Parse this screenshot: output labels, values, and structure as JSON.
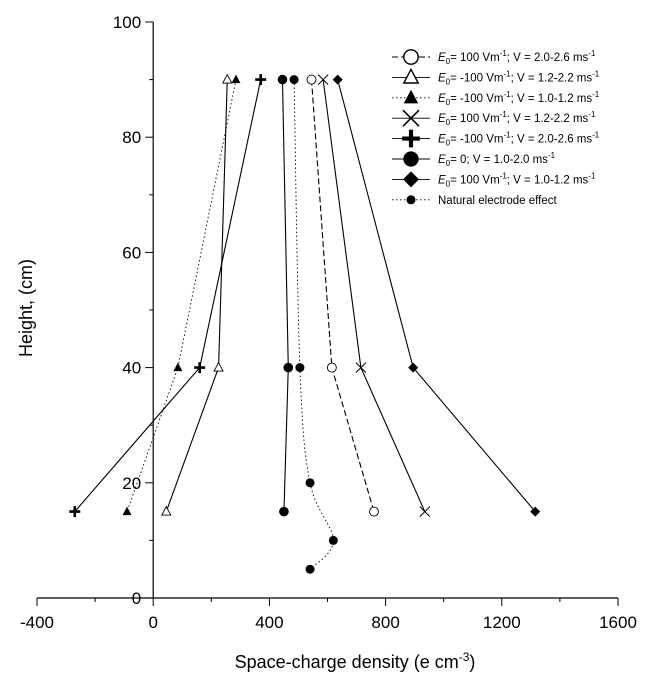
{
  "chart_data": {
    "type": "line",
    "title": "",
    "xlabel": "Space-charge density (e cm",
    "xlabel_sup": "-3",
    "xlabel_end": ")",
    "ylabel": "Height, (cm)",
    "xlim": [
      -400,
      1600
    ],
    "ylim": [
      0,
      100
    ],
    "x_ticks": [
      -400,
      0,
      400,
      800,
      1200,
      1600
    ],
    "y_ticks": [
      0,
      20,
      40,
      60,
      80,
      100
    ],
    "x_minor_step": 200,
    "y_minor_step": 10,
    "grid": false,
    "legend_position": "top-right",
    "series": [
      {
        "name": "E0= 100 Vm-1; V = 2.0-2.6 ms-1",
        "legend_parts": [
          {
            "t": "E",
            "style": "italic"
          },
          {
            "t": "0",
            "style": "sub"
          },
          {
            "t": "= 100 Vm",
            "style": "normal"
          },
          {
            "t": "-1",
            "style": "sup"
          },
          {
            "t": "; V = 2.0-2.6 ms",
            "style": "normal"
          },
          {
            "t": "-1",
            "style": "sup"
          }
        ],
        "marker": "open-circle",
        "line": "dashed",
        "x": [
          545,
          615,
          760
        ],
        "y": [
          90,
          40,
          15
        ]
      },
      {
        "name": "E0= -100 Vm-1; V = 1.2-2.2 ms-1",
        "legend_parts": [
          {
            "t": "E",
            "style": "italic"
          },
          {
            "t": "0",
            "style": "sub"
          },
          {
            "t": "= -100 Vm",
            "style": "normal"
          },
          {
            "t": "-1",
            "style": "sup"
          },
          {
            "t": "; V = 1.2-2.2 ms",
            "style": "normal"
          },
          {
            "t": "-1",
            "style": "sup"
          }
        ],
        "marker": "open-triangle",
        "line": "solid",
        "x": [
          255,
          225,
          45
        ],
        "y": [
          90,
          40,
          15
        ]
      },
      {
        "name": "E0= -100 Vm-1; V = 1.0-1.2 ms-1",
        "legend_parts": [
          {
            "t": "E",
            "style": "italic"
          },
          {
            "t": "0",
            "style": "sub"
          },
          {
            "t": "= -100 Vm",
            "style": "normal"
          },
          {
            "t": "-1",
            "style": "sup"
          },
          {
            "t": "; V = 1.0-1.2 ms",
            "style": "normal"
          },
          {
            "t": "-1",
            "style": "sup"
          }
        ],
        "marker": "filled-triangle",
        "line": "dotted",
        "x": [
          285,
          85,
          -90
        ],
        "y": [
          90,
          40,
          15
        ]
      },
      {
        "name": "E0= 100 Vm-1; V = 1.2-2.2 ms-1",
        "legend_parts": [
          {
            "t": "E",
            "style": "italic"
          },
          {
            "t": "0",
            "style": "sub"
          },
          {
            "t": "= 100 Vm",
            "style": "normal"
          },
          {
            "t": "-1",
            "style": "sup"
          },
          {
            "t": "; V = 1.2-2.2 ms",
            "style": "normal"
          },
          {
            "t": "-1",
            "style": "sup"
          }
        ],
        "marker": "x",
        "line": "solid",
        "x": [
          585,
          715,
          935
        ],
        "y": [
          90,
          40,
          15
        ]
      },
      {
        "name": "E0= -100 Vm-1; V = 2.0-2.6 ms-1",
        "legend_parts": [
          {
            "t": "E",
            "style": "italic"
          },
          {
            "t": "0",
            "style": "sub"
          },
          {
            "t": "= -100 Vm",
            "style": "normal"
          },
          {
            "t": "-1",
            "style": "sup"
          },
          {
            "t": "; V = 2.0-2.6 ms",
            "style": "normal"
          },
          {
            "t": "-1",
            "style": "sup"
          }
        ],
        "marker": "plus",
        "line": "solid",
        "x": [
          370,
          160,
          -270
        ],
        "y": [
          90,
          40,
          15
        ]
      },
      {
        "name": "E0= 0; V = 1.0-2.0 ms-1",
        "legend_parts": [
          {
            "t": "E",
            "style": "italic"
          },
          {
            "t": "0",
            "style": "sub"
          },
          {
            "t": "= 0; V = 1.0-2.0 ms",
            "style": "normal"
          },
          {
            "t": "-1",
            "style": "sup"
          }
        ],
        "marker": "big-filled-circle",
        "line": "solid",
        "x": [
          445,
          465,
          450
        ],
        "y": [
          90,
          40,
          15
        ]
      },
      {
        "name": "E0= 100 Vm-1; V = 1.0-1.2 ms-1",
        "legend_parts": [
          {
            "t": "E",
            "style": "italic"
          },
          {
            "t": "0",
            "style": "sub"
          },
          {
            "t": "= 100 Vm",
            "style": "normal"
          },
          {
            "t": "-1",
            "style": "sup"
          },
          {
            "t": "; V = 1.0-1.2 ms",
            "style": "normal"
          },
          {
            "t": "-1",
            "style": "sup"
          }
        ],
        "marker": "filled-diamond",
        "line": "solid",
        "x": [
          635,
          895,
          1315
        ],
        "y": [
          90,
          40,
          15
        ]
      },
      {
        "name": "Natural electrode effect",
        "legend_parts": [
          {
            "t": "Natural electrode effect",
            "style": "normal"
          }
        ],
        "marker": "filled-circle",
        "line": "dotted",
        "smooth": true,
        "x": [
          485,
          505,
          540,
          620,
          540
        ],
        "y": [
          90,
          40,
          20,
          10,
          5
        ]
      }
    ]
  }
}
